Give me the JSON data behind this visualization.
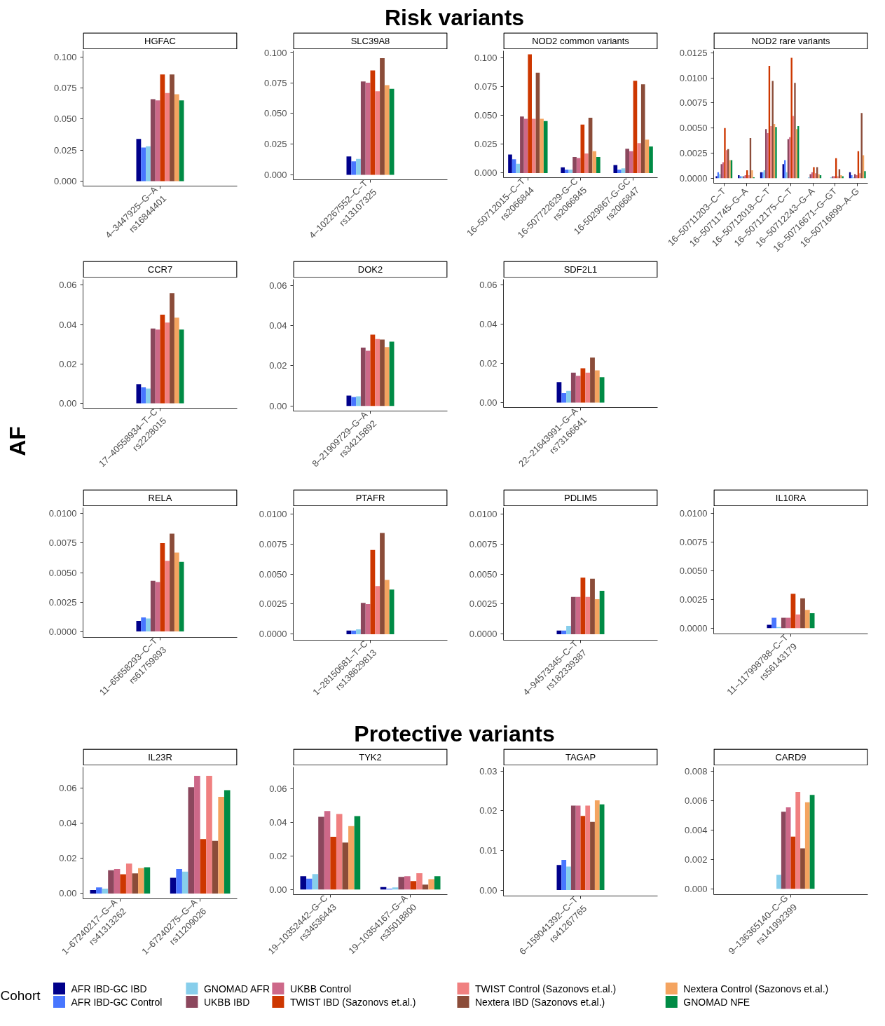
{
  "chart_data": [
    {
      "type": "bar",
      "annotations": [
        "Risk variants"
      ],
      "subtitle": "HGFAC",
      "categories": [
        "4–3447925–G–A\nrs16844401"
      ],
      "ylim": [
        -0.004,
        0.105
      ],
      "yticks": [
        {
          "value": 0,
          "label": "0.000"
        },
        {
          "value": 0.025,
          "label": "0.025"
        },
        {
          "value": 0.05,
          "label": "0.050"
        },
        {
          "value": 0.075,
          "label": "0.075"
        },
        {
          "value": 0.1,
          "label": "0.100"
        }
      ],
      "series": [
        {
          "color": "#00008b",
          "values": [
            0.034
          ]
        },
        {
          "color": "#4876ff",
          "values": [
            0.027
          ]
        },
        {
          "color": "#87ceeb",
          "values": [
            0.028
          ]
        },
        {
          "color": "#8b475d",
          "values": [
            0.066
          ]
        },
        {
          "color": "#cd6889",
          "values": [
            0.065
          ]
        },
        {
          "color": "#cd3700",
          "values": [
            0.086
          ]
        },
        {
          "color": "#f08080",
          "values": [
            0.071
          ]
        },
        {
          "color": "#8b4c39",
          "values": [
            0.086
          ]
        },
        {
          "color": "#f4a460",
          "values": [
            0.07
          ]
        },
        {
          "color": "#008b45",
          "values": [
            0.065
          ]
        }
      ]
    },
    {
      "type": "bar",
      "subtitle": "SLC39A8",
      "categories": [
        "4–102267552–C–T\nrs13107325"
      ],
      "ylim": [
        -0.004,
        0.101
      ],
      "yticks": [
        {
          "value": 0,
          "label": "0.000"
        },
        {
          "value": 0.025,
          "label": "0.025"
        },
        {
          "value": 0.05,
          "label": "0.050"
        },
        {
          "value": 0.075,
          "label": "0.075"
        },
        {
          "value": 0.1,
          "label": "0.100"
        }
      ],
      "series": [
        {
          "color": "#00008b",
          "values": [
            0.015
          ]
        },
        {
          "color": "#4876ff",
          "values": [
            0.011
          ]
        },
        {
          "color": "#87ceeb",
          "values": [
            0.013
          ]
        },
        {
          "color": "#8b475d",
          "values": [
            0.076
          ]
        },
        {
          "color": "#cd6889",
          "values": [
            0.075
          ]
        },
        {
          "color": "#cd3700",
          "values": [
            0.085
          ]
        },
        {
          "color": "#f08080",
          "values": [
            0.068
          ]
        },
        {
          "color": "#8b4c39",
          "values": [
            0.095
          ]
        },
        {
          "color": "#f4a460",
          "values": [
            0.073
          ]
        },
        {
          "color": "#008b45",
          "values": [
            0.07
          ]
        }
      ]
    },
    {
      "type": "bar",
      "subtitle": "NOD2 common variants",
      "categories": [
        "16–50712015–C–T\nrs2066844",
        "16-507722629-G–C\nrs2066845",
        "16-5029867-G-GC\nrs2066847"
      ],
      "ylim": [
        -0.004,
        0.106
      ],
      "yticks": [
        {
          "value": 0,
          "label": "0.000"
        },
        {
          "value": 0.025,
          "label": "0.025"
        },
        {
          "value": 0.05,
          "label": "0.050"
        },
        {
          "value": 0.075,
          "label": "0.075"
        },
        {
          "value": 0.1,
          "label": "0.100"
        }
      ],
      "series": [
        {
          "color": "#00008b",
          "values": [
            0.016,
            0.005,
            0.007
          ]
        },
        {
          "color": "#4876ff",
          "values": [
            0.012,
            0.003,
            0.003
          ]
        },
        {
          "color": "#87ceeb",
          "values": [
            0.008,
            0.003,
            0.004
          ]
        },
        {
          "color": "#8b475d",
          "values": [
            0.049,
            0.014,
            0.021
          ]
        },
        {
          "color": "#cd6889",
          "values": [
            0.047,
            0.013,
            0.019
          ]
        },
        {
          "color": "#cd3700",
          "values": [
            0.103,
            0.042,
            0.08
          ]
        },
        {
          "color": "#f08080",
          "values": [
            0.047,
            0.017,
            0.026
          ]
        },
        {
          "color": "#8b4c39",
          "values": [
            0.087,
            0.048,
            0.077
          ]
        },
        {
          "color": "#f4a460",
          "values": [
            0.047,
            0.019,
            0.029
          ]
        },
        {
          "color": "#008b45",
          "values": [
            0.045,
            0.014,
            0.023
          ]
        }
      ]
    },
    {
      "type": "bar",
      "subtitle": "NOD2 rare variants",
      "categories": [
        "16–50711203–C–T",
        "16–50711745–G–A",
        "16–50712018–C–T",
        "16–50712175–C–T",
        "16–50712243–G–A",
        "16–50716671–G–GT",
        "16–50716899–A–G"
      ],
      "ylim": [
        -0.0005,
        0.0127
      ],
      "yticks": [
        {
          "value": 0,
          "label": "0.0000"
        },
        {
          "value": 0.0025,
          "label": "0.0025"
        },
        {
          "value": 0.005,
          "label": "0.0050"
        },
        {
          "value": 0.0075,
          "label": "0.0075"
        },
        {
          "value": 0.01,
          "label": "0.0100"
        },
        {
          "value": 0.0125,
          "label": "0.0125"
        }
      ],
      "series": [
        {
          "color": "#00008b",
          "values": [
            0.0002,
            0.0003,
            0.0006,
            0.0014,
            0,
            0,
            0.0006
          ]
        },
        {
          "color": "#4876ff",
          "values": [
            0.0006,
            0.0002,
            0.0006,
            0.0018,
            0,
            0,
            0.0003
          ]
        },
        {
          "color": "#87ceeb",
          "values": [
            0.0004,
            0.0002,
            0.0008,
            0.0006,
            0.0001,
            0.0001,
            0.0001
          ]
        },
        {
          "color": "#8b475d",
          "values": [
            0.0014,
            0.0002,
            0.0049,
            0.0039,
            0.0004,
            0.0002,
            0.0004
          ]
        },
        {
          "color": "#cd6889",
          "values": [
            0.0016,
            0.0003,
            0.0045,
            0.0041,
            0.0006,
            0.0002,
            0.0003
          ]
        },
        {
          "color": "#cd3700",
          "values": [
            0.005,
            0.0008,
            0.0112,
            0.012,
            0.0011,
            0.002,
            0.0027
          ]
        },
        {
          "color": "#f08080",
          "values": [
            0.0028,
            0.0003,
            0.0052,
            0.0062,
            0.0005,
            0.0002,
            0.0005
          ]
        },
        {
          "color": "#8b4c39",
          "values": [
            0.0029,
            0.004,
            0.0097,
            0.0095,
            0.0011,
            0.0009,
            0.0065
          ]
        },
        {
          "color": "#f4a460",
          "values": [
            0.0018,
            0.0008,
            0.0054,
            0.0049,
            0.0004,
            0.0003,
            0.0023
          ]
        },
        {
          "color": "#008b45",
          "values": [
            0.0018,
            0.0001,
            0.0051,
            0.0052,
            0.0003,
            0.0002,
            0.0007
          ]
        }
      ]
    },
    {
      "type": "bar",
      "subtitle": "CCR7",
      "ylabel": "AF",
      "categories": [
        "17–40558934–T–C\nrs2228015"
      ],
      "ylim": [
        -0.0025,
        0.063
      ],
      "yticks": [
        {
          "value": 0,
          "label": "0.00"
        },
        {
          "value": 0.02,
          "label": "0.02"
        },
        {
          "value": 0.04,
          "label": "0.04"
        },
        {
          "value": 0.06,
          "label": "0.06"
        }
      ],
      "series": [
        {
          "color": "#00008b",
          "values": [
            0.0097
          ]
        },
        {
          "color": "#4876ff",
          "values": [
            0.0082
          ]
        },
        {
          "color": "#87ceeb",
          "values": [
            0.0075
          ]
        },
        {
          "color": "#8b475d",
          "values": [
            0.038
          ]
        },
        {
          "color": "#cd6889",
          "values": [
            0.0375
          ]
        },
        {
          "color": "#cd3700",
          "values": [
            0.045
          ]
        },
        {
          "color": "#f08080",
          "values": [
            0.041
          ]
        },
        {
          "color": "#8b4c39",
          "values": [
            0.056
          ]
        },
        {
          "color": "#f4a460",
          "values": [
            0.0435
          ]
        },
        {
          "color": "#008b45",
          "values": [
            0.0375
          ]
        }
      ]
    },
    {
      "type": "bar",
      "subtitle": "DOK2",
      "categories": [
        "8–21909729–G–A\nrs34215892"
      ],
      "ylim": [
        -0.0025,
        0.063
      ],
      "yticks": [
        {
          "value": 0,
          "label": "0.00"
        },
        {
          "value": 0.02,
          "label": "0.02"
        },
        {
          "value": 0.04,
          "label": "0.04"
        },
        {
          "value": 0.06,
          "label": "0.06"
        }
      ],
      "series": [
        {
          "color": "#00008b",
          "values": [
            0.0052
          ]
        },
        {
          "color": "#4876ff",
          "values": [
            0.0045
          ]
        },
        {
          "color": "#87ceeb",
          "values": [
            0.0048
          ]
        },
        {
          "color": "#8b475d",
          "values": [
            0.029
          ]
        },
        {
          "color": "#cd6889",
          "values": [
            0.0275
          ]
        },
        {
          "color": "#cd3700",
          "values": [
            0.0355
          ]
        },
        {
          "color": "#f08080",
          "values": [
            0.0333
          ]
        },
        {
          "color": "#8b4c39",
          "values": [
            0.033
          ]
        },
        {
          "color": "#f4a460",
          "values": [
            0.0293
          ]
        },
        {
          "color": "#008b45",
          "values": [
            0.032
          ]
        }
      ]
    },
    {
      "type": "bar",
      "subtitle": "SDF2L1",
      "categories": [
        "22–21643991–G–A\nrs73166641"
      ],
      "ylim": [
        -0.0025,
        0.063
      ],
      "yticks": [
        {
          "value": 0,
          "label": "0.00"
        },
        {
          "value": 0.02,
          "label": "0.02"
        },
        {
          "value": 0.04,
          "label": "0.04"
        },
        {
          "value": 0.06,
          "label": "0.06"
        }
      ],
      "series": [
        {
          "color": "#00008b",
          "values": [
            0.0105
          ]
        },
        {
          "color": "#4876ff",
          "values": [
            0.0048
          ]
        },
        {
          "color": "#87ceeb",
          "values": [
            0.006
          ]
        },
        {
          "color": "#8b475d",
          "values": [
            0.0153
          ]
        },
        {
          "color": "#cd6889",
          "values": [
            0.0137
          ]
        },
        {
          "color": "#cd3700",
          "values": [
            0.0175
          ]
        },
        {
          "color": "#f08080",
          "values": [
            0.0153
          ]
        },
        {
          "color": "#8b4c39",
          "values": [
            0.023
          ]
        },
        {
          "color": "#f4a460",
          "values": [
            0.0165
          ]
        },
        {
          "color": "#008b45",
          "values": [
            0.013
          ]
        }
      ]
    },
    {
      "type": "bar",
      "subtitle": "RELA",
      "categories": [
        "11–65658293–C–T\nrs61759893"
      ],
      "ylim": [
        -0.0005,
        0.0105
      ],
      "yticks": [
        {
          "value": 0,
          "label": "0.0000"
        },
        {
          "value": 0.0025,
          "label": "0.0025"
        },
        {
          "value": 0.005,
          "label": "0.0050"
        },
        {
          "value": 0.0075,
          "label": "0.0075"
        },
        {
          "value": 0.01,
          "label": "0.0100"
        }
      ],
      "series": [
        {
          "color": "#00008b",
          "values": [
            0.0009
          ]
        },
        {
          "color": "#4876ff",
          "values": [
            0.0012
          ]
        },
        {
          "color": "#87ceeb",
          "values": [
            0.0011
          ]
        },
        {
          "color": "#8b475d",
          "values": [
            0.0043
          ]
        },
        {
          "color": "#cd6889",
          "values": [
            0.0042
          ]
        },
        {
          "color": "#cd3700",
          "values": [
            0.0075
          ]
        },
        {
          "color": "#f08080",
          "values": [
            0.006
          ]
        },
        {
          "color": "#8b4c39",
          "values": [
            0.0083
          ]
        },
        {
          "color": "#f4a460",
          "values": [
            0.0067
          ]
        },
        {
          "color": "#008b45",
          "values": [
            0.0059
          ]
        }
      ]
    },
    {
      "type": "bar",
      "subtitle": "PTAFR",
      "categories": [
        "1–28150681–T–C\nrs138629813"
      ],
      "ylim": [
        -0.0005,
        0.0105
      ],
      "yticks": [
        {
          "value": 0,
          "label": "0.0000"
        },
        {
          "value": 0.0025,
          "label": "0.0025"
        },
        {
          "value": 0.005,
          "label": "0.0050"
        },
        {
          "value": 0.0075,
          "label": "0.0075"
        },
        {
          "value": 0.01,
          "label": "0.0100"
        }
      ],
      "series": [
        {
          "color": "#00008b",
          "values": [
            0.0003
          ]
        },
        {
          "color": "#4876ff",
          "values": [
            0.0003
          ]
        },
        {
          "color": "#87ceeb",
          "values": [
            0.0004
          ]
        },
        {
          "color": "#8b475d",
          "values": [
            0.0026
          ]
        },
        {
          "color": "#cd6889",
          "values": [
            0.0025
          ]
        },
        {
          "color": "#cd3700",
          "values": [
            0.007
          ]
        },
        {
          "color": "#f08080",
          "values": [
            0.004
          ]
        },
        {
          "color": "#8b4c39",
          "values": [
            0.0084
          ]
        },
        {
          "color": "#f4a460",
          "values": [
            0.0045
          ]
        },
        {
          "color": "#008b45",
          "values": [
            0.0037
          ]
        }
      ]
    },
    {
      "type": "bar",
      "subtitle": "PDLIM5",
      "categories": [
        "4–94573345–C–T\nrs182339387"
      ],
      "ylim": [
        -0.0005,
        0.0105
      ],
      "yticks": [
        {
          "value": 0,
          "label": "0.0000"
        },
        {
          "value": 0.0025,
          "label": "0.0025"
        },
        {
          "value": 0.005,
          "label": "0.0050"
        },
        {
          "value": 0.0075,
          "label": "0.0075"
        },
        {
          "value": 0.01,
          "label": "0.0100"
        }
      ],
      "series": [
        {
          "color": "#00008b",
          "values": [
            0.0003
          ]
        },
        {
          "color": "#4876ff",
          "values": [
            0.0003
          ]
        },
        {
          "color": "#87ceeb",
          "values": [
            0.0007
          ]
        },
        {
          "color": "#8b475d",
          "values": [
            0.0031
          ]
        },
        {
          "color": "#cd6889",
          "values": [
            0.0031
          ]
        },
        {
          "color": "#cd3700",
          "values": [
            0.0047
          ]
        },
        {
          "color": "#f08080",
          "values": [
            0.0031
          ]
        },
        {
          "color": "#8b4c39",
          "values": [
            0.0046
          ]
        },
        {
          "color": "#f4a460",
          "values": [
            0.0029
          ]
        },
        {
          "color": "#008b45",
          "values": [
            0.0036
          ]
        }
      ]
    },
    {
      "type": "bar",
      "subtitle": "IL10RA",
      "categories": [
        "11–117998788–C–T\nrs56143179"
      ],
      "ylim": [
        -0.0005,
        0.0105
      ],
      "yticks": [
        {
          "value": 0,
          "label": "0.0000"
        },
        {
          "value": 0.0025,
          "label": "0.0025"
        },
        {
          "value": 0.005,
          "label": "0.0050"
        },
        {
          "value": 0.0075,
          "label": "0.0075"
        },
        {
          "value": 0.01,
          "label": "0.0100"
        }
      ],
      "series": [
        {
          "color": "#00008b",
          "values": [
            0.0003
          ]
        },
        {
          "color": "#4876ff",
          "values": [
            0.0009
          ]
        },
        {
          "color": "#87ceeb",
          "values": [
            0.0001
          ]
        },
        {
          "color": "#8b475d",
          "values": [
            0.0009
          ]
        },
        {
          "color": "#cd6889",
          "values": [
            0.0009
          ]
        },
        {
          "color": "#cd3700",
          "values": [
            0.003
          ]
        },
        {
          "color": "#f08080",
          "values": [
            0.0012
          ]
        },
        {
          "color": "#8b4c39",
          "values": [
            0.0026
          ]
        },
        {
          "color": "#f4a460",
          "values": [
            0.0016
          ]
        },
        {
          "color": "#008b45",
          "values": [
            0.0013
          ]
        }
      ]
    },
    {
      "type": "bar",
      "annotations": [
        "Protective variants"
      ],
      "subtitle": "IL23R",
      "categories": [
        "1–67240217–G–A\nrs41313262",
        "1–67240275–G–A\nrs11209026"
      ],
      "ylim": [
        -0.003,
        0.072
      ],
      "yticks": [
        {
          "value": 0,
          "label": "0.00"
        },
        {
          "value": 0.02,
          "label": "0.02"
        },
        {
          "value": 0.04,
          "label": "0.04"
        },
        {
          "value": 0.06,
          "label": "0.06"
        }
      ],
      "series": [
        {
          "color": "#00008b",
          "values": [
            0.002,
            0.009
          ]
        },
        {
          "color": "#4876ff",
          "values": [
            0.0035,
            0.014
          ]
        },
        {
          "color": "#87ceeb",
          "values": [
            0.0028,
            0.0125
          ]
        },
        {
          "color": "#8b475d",
          "values": [
            0.0133,
            0.0605
          ]
        },
        {
          "color": "#cd6889",
          "values": [
            0.014,
            0.067
          ]
        },
        {
          "color": "#cd3700",
          "values": [
            0.011,
            0.031
          ]
        },
        {
          "color": "#f08080",
          "values": [
            0.017,
            0.067
          ]
        },
        {
          "color": "#8b4c39",
          "values": [
            0.0115,
            0.03
          ]
        },
        {
          "color": "#f4a460",
          "values": [
            0.0145,
            0.055
          ]
        },
        {
          "color": "#008b45",
          "values": [
            0.015,
            0.0588
          ]
        }
      ]
    },
    {
      "type": "bar",
      "subtitle": "TYK2",
      "categories": [
        "19–10352442–G–C\nrs34536443",
        "19–10354167–G–A\nrs35018800"
      ],
      "ylim": [
        -0.003,
        0.073
      ],
      "yticks": [
        {
          "value": 0,
          "label": "0.00"
        },
        {
          "value": 0.02,
          "label": "0.02"
        },
        {
          "value": 0.04,
          "label": "0.04"
        },
        {
          "value": 0.06,
          "label": "0.06"
        }
      ],
      "series": [
        {
          "color": "#00008b",
          "values": [
            0.008,
            0.0015
          ]
        },
        {
          "color": "#4876ff",
          "values": [
            0.0065,
            0.0005
          ]
        },
        {
          "color": "#87ceeb",
          "values": [
            0.0092,
            0.0013
          ]
        },
        {
          "color": "#8b475d",
          "values": [
            0.0433,
            0.0075
          ]
        },
        {
          "color": "#cd6889",
          "values": [
            0.0468,
            0.008
          ]
        },
        {
          "color": "#cd3700",
          "values": [
            0.0315,
            0.005
          ]
        },
        {
          "color": "#f08080",
          "values": [
            0.045,
            0.0097
          ]
        },
        {
          "color": "#8b4c39",
          "values": [
            0.028,
            0.003
          ]
        },
        {
          "color": "#f4a460",
          "values": [
            0.0378,
            0.0062
          ]
        },
        {
          "color": "#008b45",
          "values": [
            0.0438,
            0.008
          ]
        }
      ]
    },
    {
      "type": "bar",
      "subtitle": "TAGAP",
      "categories": [
        "6–159041392–C–T\nrs41267765"
      ],
      "ylim": [
        -0.0015,
        0.031
      ],
      "yticks": [
        {
          "value": 0,
          "label": "0.00"
        },
        {
          "value": 0.01,
          "label": "0.01"
        },
        {
          "value": 0.02,
          "label": "0.02"
        },
        {
          "value": 0.03,
          "label": "0.03"
        }
      ],
      "series": [
        {
          "color": "#00008b",
          "values": [
            0.0063
          ]
        },
        {
          "color": "#4876ff",
          "values": [
            0.0076
          ]
        },
        {
          "color": "#87ceeb",
          "values": [
            0.0059
          ]
        },
        {
          "color": "#8b475d",
          "values": [
            0.0213
          ]
        },
        {
          "color": "#cd6889",
          "values": [
            0.0213
          ]
        },
        {
          "color": "#cd3700",
          "values": [
            0.0187
          ]
        },
        {
          "color": "#f08080",
          "values": [
            0.0213
          ]
        },
        {
          "color": "#8b4c39",
          "values": [
            0.0172
          ]
        },
        {
          "color": "#f4a460",
          "values": [
            0.0226
          ]
        },
        {
          "color": "#008b45",
          "values": [
            0.0216
          ]
        }
      ]
    },
    {
      "type": "bar",
      "subtitle": "CARD9",
      "legend": "bottom",
      "legend_title": "Cohort",
      "categories": [
        "9–136365140–C–G\nrs141992399"
      ],
      "ylim": [
        -0.0004,
        0.0083
      ],
      "yticks": [
        {
          "value": 0,
          "label": "0.000"
        },
        {
          "value": 0.002,
          "label": "0.002"
        },
        {
          "value": 0.004,
          "label": "0.004"
        },
        {
          "value": 0.006,
          "label": "0.006"
        },
        {
          "value": 0.008,
          "label": "0.008"
        }
      ],
      "series": [
        {
          "name": "AFR IBD-GC IBD",
          "color": "#00008b",
          "values": [
            null
          ]
        },
        {
          "name": "AFR IBD-GC Control",
          "color": "#4876ff",
          "values": [
            null
          ]
        },
        {
          "name": "GNOMAD AFR",
          "color": "#87ceeb",
          "values": [
            0.00095
          ]
        },
        {
          "name": "UKBB IBD",
          "color": "#8b475d",
          "values": [
            0.00525
          ]
        },
        {
          "name": "UKBB Control",
          "color": "#cd6889",
          "values": [
            0.00555
          ]
        },
        {
          "name": "TWIST IBD (Sazonovs et.al.)",
          "color": "#cd3700",
          "values": [
            0.00355
          ]
        },
        {
          "name": "TWIST Control (Sazonovs et.al.)",
          "color": "#f08080",
          "values": [
            0.0066
          ]
        },
        {
          "name": "Nextera IBD (Sazonovs et.al.)",
          "color": "#8b4c39",
          "values": [
            0.00275
          ]
        },
        {
          "name": "Nextera Control (Sazonovs et.al.)",
          "color": "#f4a460",
          "values": [
            0.0059
          ]
        },
        {
          "name": "GNOMAD NFE",
          "color": "#008b45",
          "values": [
            0.0064
          ]
        }
      ]
    }
  ]
}
